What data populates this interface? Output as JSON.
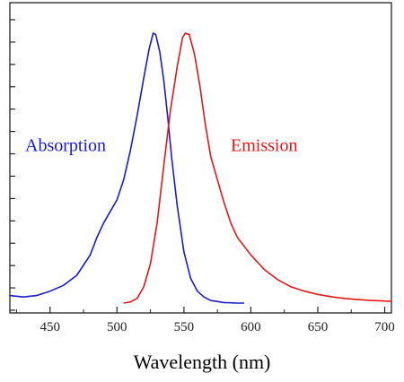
{
  "chart_data": {
    "type": "line",
    "title": "",
    "xlabel": "Wavelength (nm)",
    "ylabel": "",
    "xlim": [
      420,
      705
    ],
    "ylim": [
      -0.03,
      1.04
    ],
    "x_ticks": [
      450,
      500,
      550,
      600,
      650,
      700
    ],
    "y_tick_count": 13,
    "grid": false,
    "legend": "none",
    "series": [
      {
        "name": "Absorption",
        "color": "#1a1acc",
        "label_position": [
          57,
          0.55
        ],
        "points": [
          [
            420,
            0.03
          ],
          [
            430,
            0.025
          ],
          [
            440,
            0.03
          ],
          [
            450,
            0.045
          ],
          [
            460,
            0.065
          ],
          [
            470,
            0.1
          ],
          [
            480,
            0.17
          ],
          [
            485,
            0.23
          ],
          [
            490,
            0.28
          ],
          [
            495,
            0.32
          ],
          [
            500,
            0.36
          ],
          [
            505,
            0.43
          ],
          [
            510,
            0.53
          ],
          [
            515,
            0.65
          ],
          [
            520,
            0.78
          ],
          [
            524,
            0.88
          ],
          [
            527,
            0.935
          ],
          [
            529,
            0.93
          ],
          [
            532,
            0.87
          ],
          [
            535,
            0.77
          ],
          [
            538,
            0.64
          ],
          [
            541,
            0.5
          ],
          [
            545,
            0.34
          ],
          [
            550,
            0.18
          ],
          [
            555,
            0.09
          ],
          [
            560,
            0.045
          ],
          [
            565,
            0.025
          ],
          [
            570,
            0.013
          ],
          [
            580,
            0.006
          ],
          [
            590,
            0.004
          ],
          [
            595,
            0.004
          ]
        ]
      },
      {
        "name": "Emission",
        "color": "#e01818",
        "label_position": [
          595,
          0.55
        ],
        "points": [
          [
            505,
            0.004
          ],
          [
            510,
            0.008
          ],
          [
            515,
            0.02
          ],
          [
            520,
            0.06
          ],
          [
            525,
            0.14
          ],
          [
            530,
            0.28
          ],
          [
            535,
            0.48
          ],
          [
            540,
            0.67
          ],
          [
            545,
            0.82
          ],
          [
            549,
            0.92
          ],
          [
            551,
            0.935
          ],
          [
            554,
            0.93
          ],
          [
            558,
            0.86
          ],
          [
            562,
            0.75
          ],
          [
            566,
            0.62
          ],
          [
            570,
            0.51
          ],
          [
            575,
            0.43
          ],
          [
            580,
            0.35
          ],
          [
            585,
            0.28
          ],
          [
            590,
            0.23
          ],
          [
            600,
            0.17
          ],
          [
            610,
            0.12
          ],
          [
            620,
            0.085
          ],
          [
            630,
            0.06
          ],
          [
            640,
            0.045
          ],
          [
            650,
            0.034
          ],
          [
            660,
            0.026
          ],
          [
            670,
            0.02
          ],
          [
            680,
            0.016
          ],
          [
            690,
            0.013
          ],
          [
            700,
            0.011
          ],
          [
            705,
            0.01
          ]
        ]
      }
    ]
  }
}
